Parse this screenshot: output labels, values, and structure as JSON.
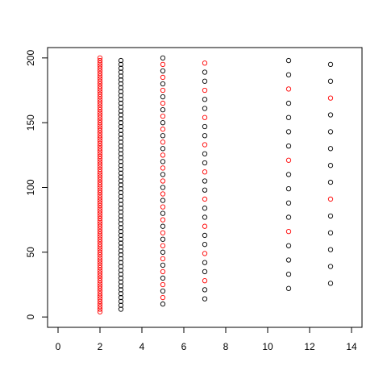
{
  "chart_data": {
    "type": "scatter",
    "title": "",
    "xlabel": "",
    "ylabel": "",
    "xlim": [
      -0.5,
      14.5
    ],
    "ylim": [
      -8,
      208
    ],
    "x_ticks": [
      0,
      2,
      4,
      6,
      8,
      10,
      12,
      14
    ],
    "y_ticks": [
      0,
      50,
      100,
      150,
      200
    ],
    "x_tick_labels": [
      "0",
      "2",
      "4",
      "6",
      "8",
      "10",
      "12",
      "14"
    ],
    "y_tick_labels": [
      "0",
      "50",
      "100",
      "150",
      "200"
    ],
    "grid": false,
    "legend": "none",
    "marker": "open-circle",
    "colors": {
      "highlight": "#ff0000",
      "default": "#000000"
    },
    "columns": [
      {
        "x": 2,
        "y_start": 4,
        "y_end": 200,
        "step": 2,
        "highlight_every": 1,
        "highlight_offset": 0
      },
      {
        "x": 3,
        "y_start": 6,
        "y_end": 198,
        "step": 3,
        "highlight_every": 0,
        "highlight_offset": 0
      },
      {
        "x": 5,
        "y_start": 10,
        "y_end": 200,
        "step": 5,
        "highlight_every": 2,
        "highlight_offset": 1
      },
      {
        "x": 7,
        "y_start": 14,
        "y_end": 196,
        "step": 7,
        "highlight_every": 3,
        "highlight_offset": 2
      },
      {
        "x": 11,
        "y_start": 22,
        "y_end": 198,
        "step": 11,
        "highlight_every": 5,
        "highlight_offset": 4
      },
      {
        "x": 13,
        "y_start": 26,
        "y_end": 195,
        "step": 13,
        "highlight_every": 6,
        "highlight_offset": 5
      }
    ]
  }
}
